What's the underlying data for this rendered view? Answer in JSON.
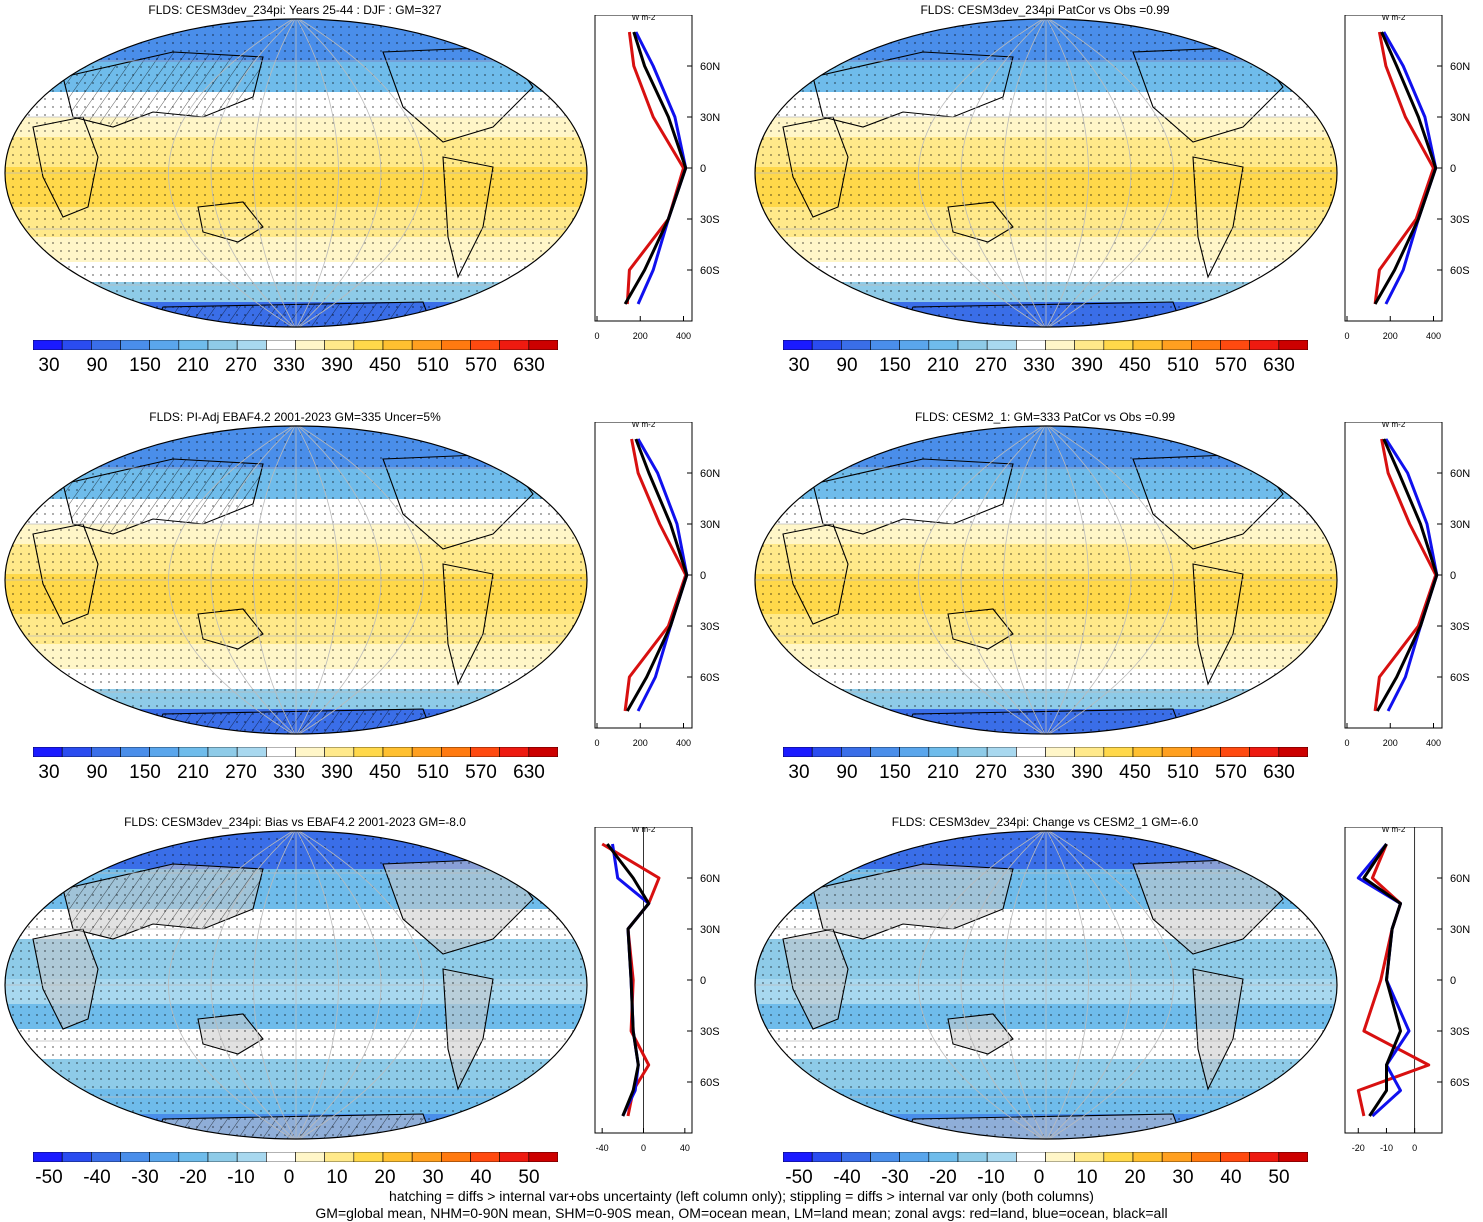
{
  "panels": [
    {
      "title": "FLDS: CESM3dev_234pi: Years 25-44 : DJF : GM=327",
      "colorbar": {
        "labels": [
          "30",
          "90",
          "150",
          "210",
          "270",
          "330",
          "390",
          "450",
          "510",
          "570",
          "630"
        ]
      },
      "zonal_axis": {
        "unit": "W m-2",
        "xticks": [
          "0",
          "200",
          "400"
        ],
        "xrange": [
          0,
          430
        ]
      },
      "overlay": "hatch+stipple"
    },
    {
      "title": "FLDS: CESM3dev_234pi PatCor vs Obs =0.99",
      "colorbar": {
        "labels": [
          "30",
          "90",
          "150",
          "210",
          "270",
          "330",
          "390",
          "450",
          "510",
          "570",
          "630"
        ]
      },
      "zonal_axis": {
        "unit": "W m-2",
        "xticks": [
          "0",
          "200",
          "400"
        ],
        "xrange": [
          0,
          430
        ]
      },
      "overlay": "stipple"
    },
    {
      "title": "FLDS: PI-Adj EBAF4.2 2001-2023 GM=335 Uncer=5%",
      "colorbar": {
        "labels": [
          "30",
          "90",
          "150",
          "210",
          "270",
          "330",
          "390",
          "450",
          "510",
          "570",
          "630"
        ]
      },
      "zonal_axis": {
        "unit": "W m-2",
        "xticks": [
          "0",
          "200",
          "400"
        ],
        "xrange": [
          0,
          430
        ]
      },
      "overlay": "hatch+stipple"
    },
    {
      "title": "FLDS: CESM2_1: GM=333 PatCor vs Obs =0.99",
      "colorbar": {
        "labels": [
          "30",
          "90",
          "150",
          "210",
          "270",
          "330",
          "390",
          "450",
          "510",
          "570",
          "630"
        ]
      },
      "zonal_axis": {
        "unit": "W m-2",
        "xticks": [
          "0",
          "200",
          "400"
        ],
        "xrange": [
          0,
          430
        ]
      },
      "overlay": "stipple"
    },
    {
      "title": "FLDS: CESM3dev_234pi: Bias vs EBAF4.2 2001-2023 GM=-8.0",
      "colorbar": {
        "labels": [
          "-50",
          "-40",
          "-30",
          "-20",
          "-10",
          "0",
          "10",
          "20",
          "30",
          "40",
          "50"
        ]
      },
      "zonal_axis": {
        "unit": "W m-2",
        "xticks": [
          "-40",
          "0",
          "40"
        ],
        "xrange": [
          -45,
          45
        ]
      },
      "overlay": "hatch+stipple"
    },
    {
      "title": "FLDS: CESM3dev_234pi: Change vs CESM2_1 GM=-6.0",
      "colorbar": {
        "labels": [
          "-50",
          "-40",
          "-30",
          "-20",
          "-10",
          "0",
          "10",
          "20",
          "30",
          "40",
          "50"
        ]
      },
      "zonal_axis": {
        "unit": "W m-2",
        "xticks": [
          "-20",
          "-10",
          "0"
        ],
        "xrange": [
          -24,
          9
        ]
      },
      "overlay": "stipple"
    }
  ],
  "lat_labels": [
    "60N",
    "30N",
    "0",
    "30S",
    "60S"
  ],
  "footnotes": [
    "hatching = diffs > internal var+obs uncertainty (left column only); stippling = diffs > internal var only (both columns)",
    "GM=global mean, NHM=0-90N mean, SHM=0-90S mean, OM=ocean mean, LM=land mean; zonal avgs: red=land, blue=ocean, black=all"
  ],
  "colors": {
    "abs_scale": [
      "#1a1aff",
      "#2a4cf0",
      "#3a6ee8",
      "#4a8eea",
      "#5aa6ec",
      "#6fbceb",
      "#8ecbe8",
      "#a8d8ef",
      "#ffffff",
      "#fff6c8",
      "#ffe98a",
      "#ffd84a",
      "#ffc030",
      "#ffa020",
      "#ff7a10",
      "#ff4a10",
      "#ee1a10",
      "#cc0000"
    ],
    "land": "#d81010",
    "ocean": "#1010ee",
    "all": "#000000"
  },
  "chart_data": [
    {
      "type": "line",
      "title": "FLDS: CESM3dev_234pi: Years 25-44 : DJF : GM=327",
      "xlabel": "W m-2",
      "y": [
        80,
        60,
        30,
        0,
        -30,
        -60,
        -80
      ],
      "series": [
        {
          "name": "land",
          "values": [
            150,
            170,
            260,
            400,
            330,
            150,
            140
          ]
        },
        {
          "name": "ocean",
          "values": [
            180,
            260,
            360,
            410,
            330,
            260,
            190
          ]
        },
        {
          "name": "all",
          "values": [
            170,
            220,
            330,
            410,
            330,
            220,
            130
          ]
        }
      ]
    },
    {
      "type": "line",
      "title": "FLDS: CESM3dev_234pi PatCor vs Obs =0.99",
      "xlabel": "W m-2",
      "y": [
        80,
        60,
        30,
        0,
        -30,
        -60,
        -80
      ],
      "series": [
        {
          "name": "land",
          "values": [
            150,
            180,
            270,
            400,
            320,
            150,
            130
          ]
        },
        {
          "name": "ocean",
          "values": [
            170,
            260,
            360,
            410,
            330,
            260,
            180
          ]
        },
        {
          "name": "all",
          "values": [
            160,
            230,
            330,
            410,
            330,
            220,
            130
          ]
        }
      ]
    },
    {
      "type": "line",
      "title": "FLDS: PI-Adj EBAF4.2 2001-2023 GM=335 Uncer=5%",
      "xlabel": "W m-2",
      "y": [
        80,
        60,
        30,
        0,
        -30,
        -60,
        -80
      ],
      "series": [
        {
          "name": "land",
          "values": [
            160,
            190,
            290,
            410,
            330,
            150,
            130
          ]
        },
        {
          "name": "ocean",
          "values": [
            190,
            280,
            370,
            415,
            340,
            270,
            190
          ]
        },
        {
          "name": "all",
          "values": [
            180,
            240,
            340,
            415,
            340,
            230,
            140
          ]
        }
      ]
    },
    {
      "type": "line",
      "title": "FLDS: CESM2_1: GM=333 PatCor vs Obs =0.99",
      "xlabel": "W m-2",
      "y": [
        80,
        60,
        30,
        0,
        -30,
        -60,
        -80
      ],
      "series": [
        {
          "name": "land",
          "values": [
            160,
            190,
            290,
            410,
            330,
            150,
            130
          ]
        },
        {
          "name": "ocean",
          "values": [
            180,
            280,
            370,
            415,
            340,
            270,
            190
          ]
        },
        {
          "name": "all",
          "values": [
            170,
            240,
            340,
            415,
            340,
            230,
            140
          ]
        }
      ]
    },
    {
      "type": "line",
      "title": "FLDS: CESM3dev_234pi: Bias vs EBAF4.2 2001-2023 GM=-8.0",
      "xlabel": "W m-2",
      "y": [
        80,
        60,
        45,
        30,
        0,
        -30,
        -50,
        -65,
        -80
      ],
      "series": [
        {
          "name": "land",
          "values": [
            -40,
            15,
            5,
            -15,
            -10,
            -12,
            5,
            -10,
            -15
          ]
        },
        {
          "name": "ocean",
          "values": [
            -30,
            -25,
            5,
            -15,
            -12,
            -10,
            -5,
            -8,
            -20
          ]
        },
        {
          "name": "all",
          "values": [
            -35,
            -10,
            5,
            -15,
            -12,
            -10,
            -5,
            -10,
            -20
          ]
        }
      ]
    },
    {
      "type": "line",
      "title": "FLDS: CESM3dev_234pi: Change vs CESM2_1 GM=-6.0",
      "xlabel": "W m-2",
      "y": [
        80,
        60,
        45,
        30,
        0,
        -30,
        -50,
        -65,
        -80
      ],
      "series": [
        {
          "name": "land",
          "values": [
            -10,
            -15,
            -5,
            -8,
            -12,
            -18,
            5,
            -20,
            -18
          ]
        },
        {
          "name": "ocean",
          "values": [
            -10,
            -20,
            -5,
            -8,
            -10,
            -2,
            -10,
            -5,
            -15
          ]
        },
        {
          "name": "all",
          "values": [
            -10,
            -18,
            -5,
            -8,
            -10,
            -5,
            -10,
            -10,
            -16
          ]
        }
      ]
    }
  ]
}
